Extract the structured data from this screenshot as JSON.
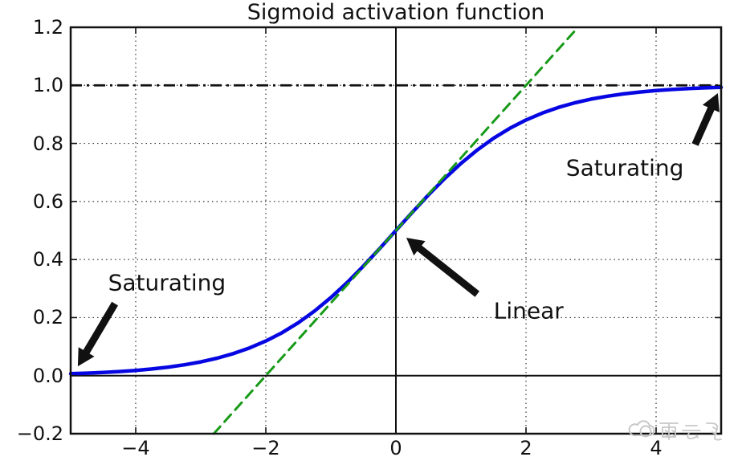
{
  "chart_data": {
    "type": "line",
    "title": "Sigmoid activation function",
    "xlabel": "",
    "ylabel": "",
    "xlim": [
      -5,
      5
    ],
    "ylim": [
      -0.2,
      1.2
    ],
    "grid": true,
    "legend": false,
    "xticks": [
      -4,
      -2,
      0,
      2,
      4
    ],
    "yticks": [
      -0.2,
      0.0,
      0.2,
      0.4,
      0.6,
      0.8,
      1.0,
      1.2
    ],
    "xtick_labels": [
      "−4",
      "−2",
      "0",
      "2",
      "4"
    ],
    "ytick_labels": [
      "−0.2",
      "0.0",
      "0.2",
      "0.4",
      "0.6",
      "0.8",
      "1.0",
      "1.2"
    ],
    "series": [
      {
        "name": "sigmoid-curve",
        "color": "#0606e2",
        "style": "solid",
        "width": 4.5,
        "x": [
          -5,
          -4.75,
          -4.5,
          -4.25,
          -4,
          -3.75,
          -3.5,
          -3.25,
          -3,
          -2.75,
          -2.5,
          -2.25,
          -2,
          -1.75,
          -1.5,
          -1.25,
          -1,
          -0.75,
          -0.5,
          -0.25,
          0,
          0.25,
          0.5,
          0.75,
          1,
          1.25,
          1.5,
          1.75,
          2,
          2.25,
          2.5,
          2.75,
          3,
          3.25,
          3.5,
          3.75,
          4,
          4.25,
          4.5,
          4.75,
          5
        ],
        "y": [
          0.0067,
          0.0086,
          0.011,
          0.0141,
          0.018,
          0.0229,
          0.0293,
          0.0373,
          0.0474,
          0.0601,
          0.0759,
          0.0954,
          0.1192,
          0.148,
          0.1824,
          0.2227,
          0.2689,
          0.3208,
          0.3775,
          0.4378,
          0.5,
          0.5622,
          0.6225,
          0.6792,
          0.7311,
          0.7773,
          0.8176,
          0.852,
          0.8808,
          0.9046,
          0.9241,
          0.9399,
          0.9526,
          0.9627,
          0.9707,
          0.9771,
          0.982,
          0.9859,
          0.989,
          0.9914,
          0.9933
        ]
      },
      {
        "name": "tangent-line",
        "color": "#189a18",
        "style": "dashed",
        "width": 3,
        "x": [
          -2.8,
          2.8
        ],
        "y": [
          -0.2,
          1.2
        ]
      }
    ],
    "reference_lines": [
      {
        "name": "asymptote-y-equals-1",
        "orientation": "horizontal",
        "value": 1.0,
        "style": "dashdot",
        "color": "#111111",
        "width": 2.8
      },
      {
        "name": "x-axis-zero-line",
        "orientation": "horizontal",
        "value": 0.0,
        "style": "solid",
        "color": "#111111",
        "width": 2
      },
      {
        "name": "y-axis-zero-line",
        "orientation": "vertical",
        "value": 0.0,
        "style": "solid",
        "color": "#111111",
        "width": 2
      }
    ],
    "annotations": [
      {
        "label": "Saturating",
        "x": -3.52,
        "y": 0.32,
        "arrow_from": [
          -4.32,
          0.248
        ],
        "arrow_to": [
          -4.89,
          0.032
        ]
      },
      {
        "label": "Linear",
        "x": 2.04,
        "y": 0.223,
        "arrow_from": [
          1.25,
          0.281
        ],
        "arrow_to": [
          0.16,
          0.475
        ]
      },
      {
        "label": "Saturating",
        "x": 3.52,
        "y": 0.716,
        "arrow_from": [
          4.6,
          0.796
        ],
        "arrow_to": [
          4.95,
          0.973
        ]
      }
    ],
    "colors": {
      "curve": "#0606e2",
      "tangent": "#189a18",
      "axis": "#111111",
      "grid": "#333333",
      "annotation_arrow": "#111111",
      "watermark": "#c8c8c8"
    }
  },
  "watermark": {
    "text": "雨云飞",
    "icon": "cloud-icon"
  }
}
